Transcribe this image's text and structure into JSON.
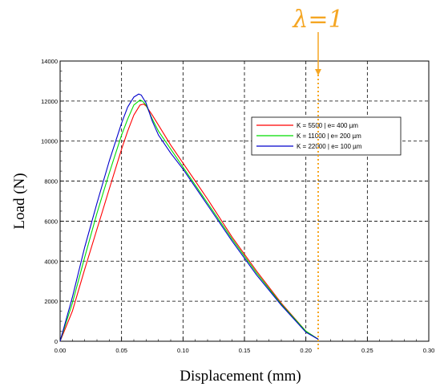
{
  "chart_data": {
    "type": "line",
    "xlabel": "Displacement (mm)",
    "ylabel": "Load (N)",
    "xlim": [
      0,
      0.3
    ],
    "ylim": [
      0,
      14000
    ],
    "x_ticks": [
      "0.00",
      "0.05",
      "0.10",
      "0.15",
      "0.20",
      "0.25",
      "0.30"
    ],
    "y_ticks": [
      "0",
      "2000",
      "4000",
      "6000",
      "8000",
      "10000",
      "12000",
      "14000"
    ],
    "grid": true,
    "legend_position": "upper-right",
    "series": [
      {
        "name": "K = 5500 | e= 400 µm",
        "color": "#ff0000",
        "x": [
          0.0,
          0.01,
          0.02,
          0.03,
          0.04,
          0.05,
          0.055,
          0.06,
          0.065,
          0.068,
          0.07,
          0.075,
          0.08,
          0.09,
          0.1,
          0.12,
          0.14,
          0.16,
          0.18,
          0.2,
          0.21
        ],
        "y": [
          0,
          1500,
          3600,
          5600,
          7600,
          9600,
          10500,
          11300,
          11800,
          11850,
          11750,
          11300,
          10800,
          9800,
          8900,
          7100,
          5200,
          3500,
          1900,
          500,
          100
        ]
      },
      {
        "name": "K = 11000 | e= 200 µm",
        "color": "#00dd00",
        "x": [
          0.0,
          0.01,
          0.02,
          0.03,
          0.04,
          0.05,
          0.055,
          0.06,
          0.065,
          0.067,
          0.07,
          0.075,
          0.08,
          0.09,
          0.1,
          0.12,
          0.14,
          0.16,
          0.18,
          0.2,
          0.21
        ],
        "y": [
          0,
          1900,
          4200,
          6400,
          8400,
          10300,
          11100,
          11800,
          12050,
          12000,
          11800,
          11100,
          10500,
          9600,
          8700,
          6900,
          5100,
          3400,
          1850,
          500,
          100
        ]
      },
      {
        "name": "K = 22000 | e= 100 µm",
        "color": "#0000cc",
        "x": [
          0.0,
          0.01,
          0.02,
          0.03,
          0.04,
          0.05,
          0.055,
          0.06,
          0.064,
          0.066,
          0.07,
          0.075,
          0.08,
          0.09,
          0.1,
          0.12,
          0.14,
          0.16,
          0.18,
          0.2,
          0.21
        ],
        "y": [
          0,
          2200,
          4700,
          6900,
          9000,
          10900,
          11700,
          12200,
          12350,
          12300,
          11900,
          11000,
          10300,
          9400,
          8600,
          6800,
          5000,
          3300,
          1800,
          450,
          100
        ]
      }
    ],
    "annotation": {
      "label": "λ=1",
      "x": 0.21,
      "color": "#f5a623"
    }
  }
}
